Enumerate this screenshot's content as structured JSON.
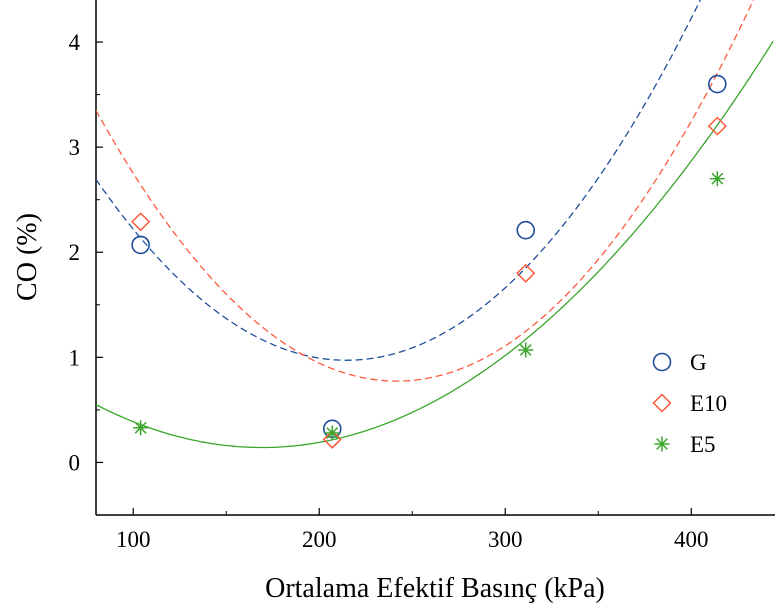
{
  "chart_data": {
    "type": "scatter",
    "xlabel": "Ortalama Efektif Basınç (kPa)",
    "ylabel": "CO (%)",
    "xlim": [
      80,
      445
    ],
    "ylim": [
      -0.5,
      4.4
    ],
    "x_ticks": [
      100,
      200,
      300,
      400
    ],
    "y_ticks": [
      0,
      1,
      2,
      3,
      4
    ],
    "grid": false,
    "legend_position": "right",
    "series": [
      {
        "name": "G",
        "marker": "circle",
        "color": "#1f4e9c",
        "line_style": "dashed",
        "points": [
          [
            104,
            2.07
          ],
          [
            207,
            0.32
          ],
          [
            311,
            2.21
          ],
          [
            414,
            3.6
          ]
        ],
        "fit": [
          5.3428,
          -0.04071,
          9.48e-05
        ]
      },
      {
        "name": "E10",
        "marker": "diamond",
        "color": "#ff5a3c",
        "line_style": "dashed",
        "points": [
          [
            104,
            2.29
          ],
          [
            207,
            0.22
          ],
          [
            311,
            1.8
          ],
          [
            414,
            3.2
          ]
        ],
        "fit": [
          6.5306,
          -0.04765,
          9.86e-05
        ]
      },
      {
        "name": "E5",
        "marker": "asterisk",
        "color": "#3aa62c",
        "line_style": "solid",
        "points": [
          [
            104,
            0.33
          ],
          [
            207,
            0.28
          ],
          [
            311,
            1.07
          ],
          [
            414,
            2.7
          ]
        ],
        "fit": [
          1.6087,
          -0.01733,
          5.12e-05
        ]
      }
    ]
  }
}
